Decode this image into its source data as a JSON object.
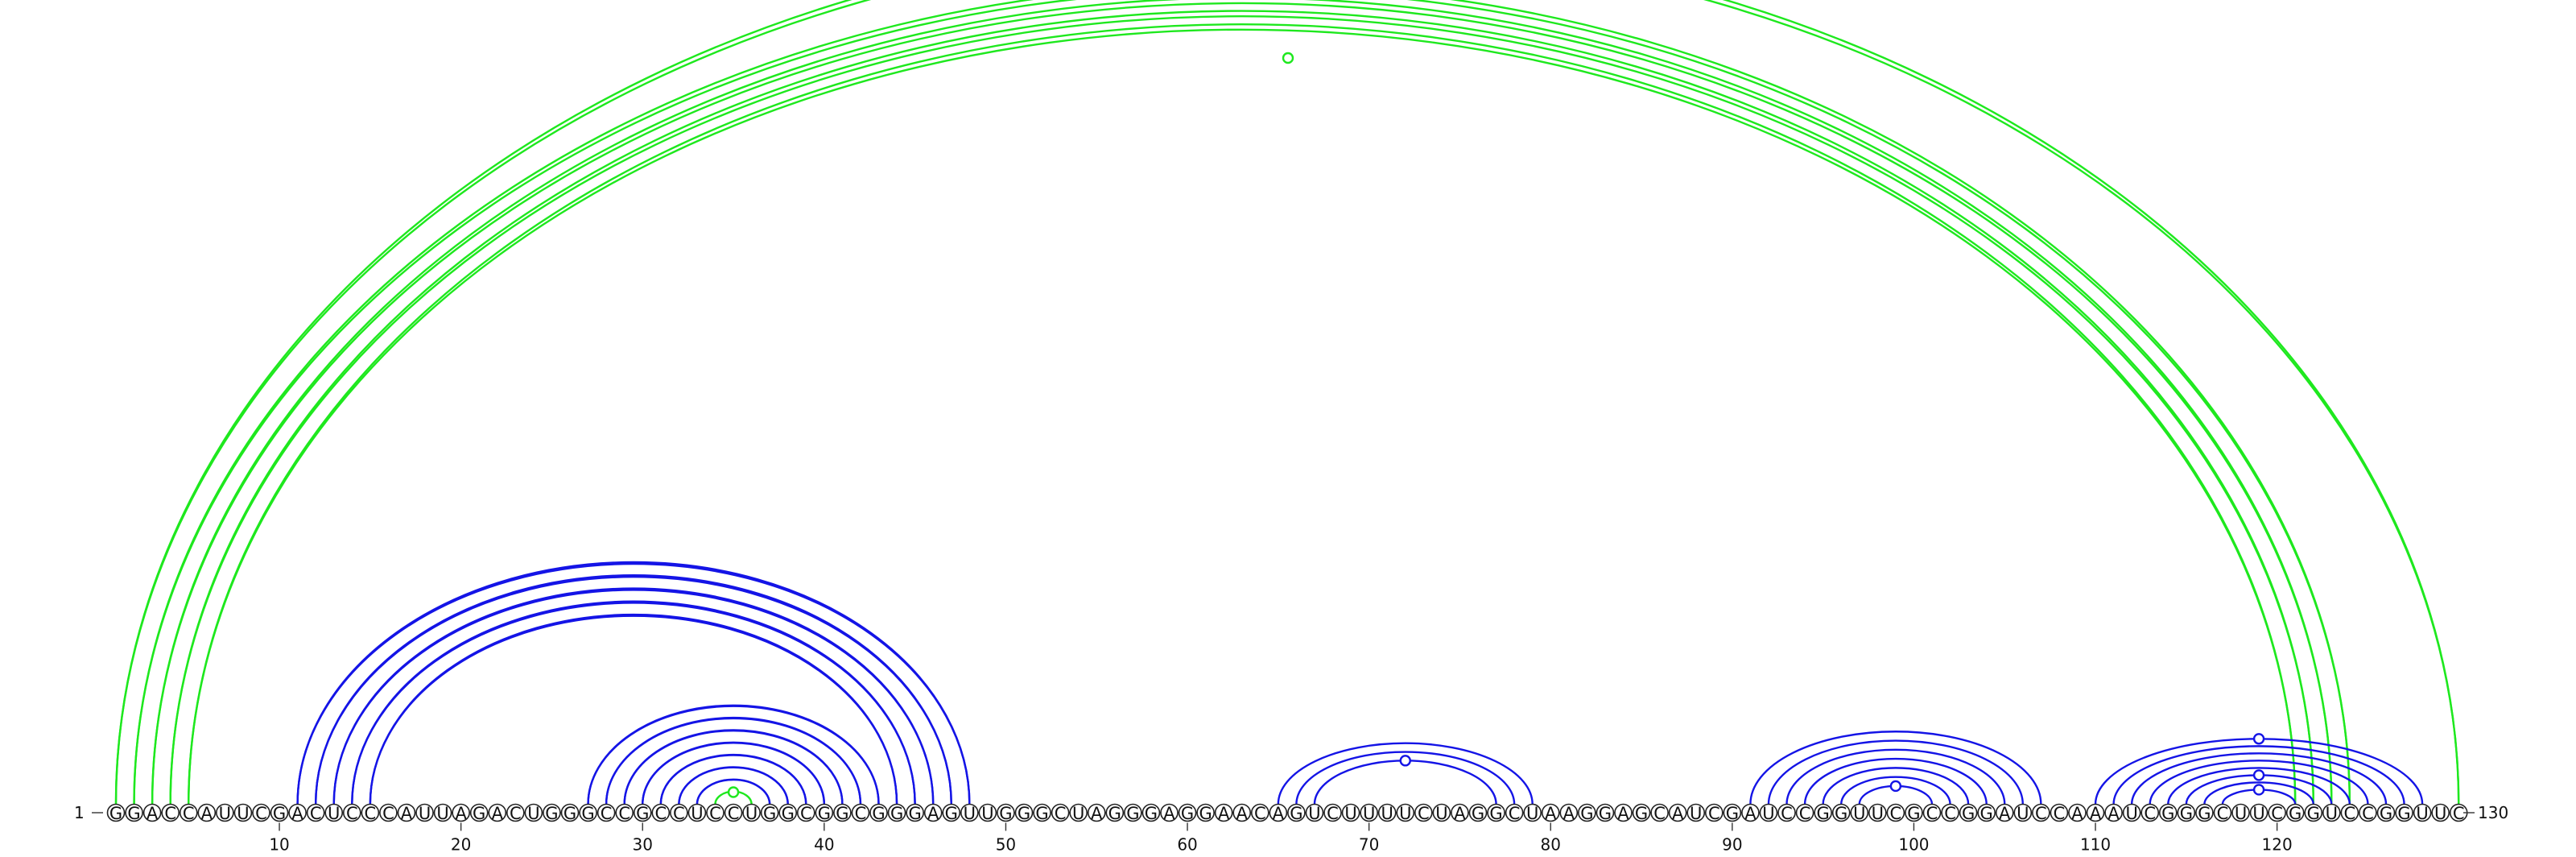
{
  "sequence": "GGACCAUUCGACUCCCAUUAGACUGGGCCGCCUCCUGGCGGCGGGAGUUGGGCUAGGGAGGAACAGUCUUUUCUAGGCUAAGGAGCAUCGAUCCGGUUCGCCGGAUCCAAAUCGGGCUUCGGUCCGGUUC",
  "start_label": "1",
  "end_label": "130",
  "ticks": [
    "10",
    "20",
    "30",
    "40",
    "50",
    "60",
    "70",
    "80",
    "90",
    "100",
    "110",
    "120"
  ],
  "colors": {
    "pseudoknot": "#1ee81e",
    "stem": "#1414e6",
    "nucleotide_stroke": "#222222",
    "background": "#ffffff"
  },
  "structure": {
    "pseudoknot_pairs": [
      [
        1,
        130
      ],
      [
        2,
        124
      ],
      [
        3,
        123
      ],
      [
        4,
        122
      ],
      [
        5,
        121
      ]
    ],
    "stem1_pairs": [
      [
        11,
        48
      ],
      [
        12,
        47
      ],
      [
        13,
        46
      ],
      [
        14,
        45
      ],
      [
        15,
        44
      ]
    ],
    "stem2_pairs": [
      [
        27,
        43
      ],
      [
        28,
        42
      ],
      [
        29,
        41
      ],
      [
        30,
        40
      ],
      [
        31,
        39
      ],
      [
        32,
        38
      ],
      [
        33,
        37
      ]
    ],
    "inner_pair": [
      [
        34,
        36
      ]
    ],
    "hairpin1_pairs": [
      [
        65,
        79
      ],
      [
        66,
        78
      ],
      [
        67,
        77
      ]
    ],
    "hairpin2_pairs": [
      [
        91,
        107
      ],
      [
        92,
        106
      ],
      [
        93,
        105
      ],
      [
        94,
        104
      ],
      [
        95,
        103
      ],
      [
        96,
        102
      ],
      [
        97,
        101
      ]
    ],
    "hairpin3_pairs": [
      [
        110,
        128
      ],
      [
        111,
        127
      ],
      [
        112,
        126
      ],
      [
        113,
        125
      ],
      [
        114,
        124
      ],
      [
        115,
        123
      ],
      [
        116,
        122
      ],
      [
        117,
        121
      ]
    ]
  }
}
